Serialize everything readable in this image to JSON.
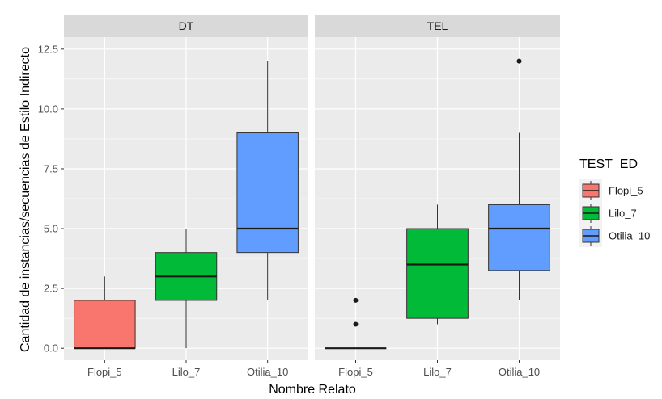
{
  "chart_data": {
    "type": "boxplot",
    "xlabel": "Nombre Relato",
    "ylabel": "Cantidad de instancias/secuencias de Estilo Indirecto",
    "ylim": [
      -0.5,
      13.0
    ],
    "yticks": [
      0.0,
      2.5,
      5.0,
      7.5,
      10.0,
      12.5
    ],
    "ytick_labels": [
      "0.0",
      "2.5",
      "5.0",
      "7.5",
      "10.0",
      "12.5"
    ],
    "categories": [
      "Flopi_5",
      "Lilo_7",
      "Otilia_10"
    ],
    "facets": [
      "DT",
      "TEL"
    ],
    "legend": {
      "title": "TEST_ED",
      "placement": "right",
      "entries": [
        {
          "label": "Flopi_5",
          "color": "#F8766D"
        },
        {
          "label": "Lilo_7",
          "color": "#00BA38"
        },
        {
          "label": "Otilia_10",
          "color": "#619CFF"
        }
      ]
    },
    "panels": [
      {
        "facet": "DT",
        "boxes": [
          {
            "category": "Flopi_5",
            "whisker_low": 0,
            "q1": 0,
            "median": 0,
            "q3": 2,
            "whisker_high": 3,
            "outliers": []
          },
          {
            "category": "Lilo_7",
            "whisker_low": 0,
            "q1": 2,
            "median": 3,
            "q3": 4,
            "whisker_high": 5,
            "outliers": []
          },
          {
            "category": "Otilia_10",
            "whisker_low": 2,
            "q1": 4,
            "median": 5,
            "q3": 9,
            "whisker_high": 12,
            "outliers": []
          }
        ]
      },
      {
        "facet": "TEL",
        "boxes": [
          {
            "category": "Flopi_5",
            "whisker_low": 0,
            "q1": 0,
            "median": 0,
            "q3": 0,
            "whisker_high": 0,
            "outliers": [
              1,
              2
            ]
          },
          {
            "category": "Lilo_7",
            "whisker_low": 1,
            "q1": 1.25,
            "median": 3.5,
            "q3": 5,
            "whisker_high": 6,
            "outliers": []
          },
          {
            "category": "Otilia_10",
            "whisker_low": 2,
            "q1": 3.25,
            "median": 5,
            "q3": 6,
            "whisker_high": 9,
            "outliers": [
              12
            ]
          }
        ]
      }
    ],
    "colors": {
      "panel_background": "#EBEBEB",
      "strip_background": "#D9D9D9",
      "grid": "#FFFFFF"
    }
  }
}
